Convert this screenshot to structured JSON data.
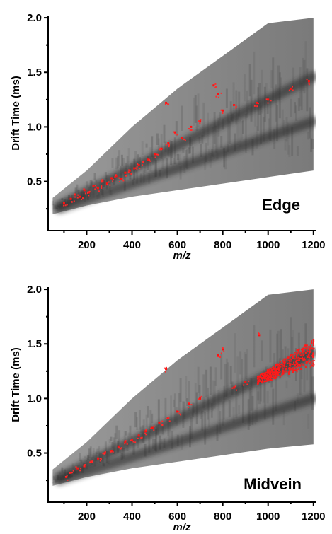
{
  "chart_data": [
    {
      "type": "heatmap",
      "annotation": "Edge",
      "xlabel": "m/z",
      "ylabel": "Drift Time (ms)",
      "xlim": [
        30,
        1210
      ],
      "ylim": [
        0.05,
        2.02
      ],
      "xticks": [
        "200",
        "400",
        "600",
        "800",
        "1000",
        "1200"
      ],
      "yticks": [
        "0.5",
        "1.0",
        "1.5",
        "2.0"
      ],
      "xtick_values": [
        200,
        400,
        600,
        800,
        1000,
        1200
      ],
      "ytick_values": [
        0.5,
        1.0,
        1.5,
        2.0
      ],
      "intensity_envelope": {
        "mz": [
          50,
          200,
          400,
          600,
          800,
          1000,
          1200
        ],
        "lower": [
          0.2,
          0.28,
          0.36,
          0.42,
          0.48,
          0.54,
          0.6
        ],
        "upper": [
          0.35,
          0.6,
          1.0,
          1.35,
          1.65,
          1.95,
          2.0
        ]
      },
      "bright_bands": [
        {
          "mz": [
            80,
            1200
          ],
          "drift": [
            0.28,
            1.46
          ]
        },
        {
          "mz": [
            80,
            1200
          ],
          "drift": [
            0.25,
            1.05
          ]
        }
      ],
      "red_features": [
        {
          "mz": 100,
          "drift": 0.3
        },
        {
          "mz": 130,
          "drift": 0.34
        },
        {
          "mz": 150,
          "drift": 0.38
        },
        {
          "mz": 170,
          "drift": 0.36
        },
        {
          "mz": 190,
          "drift": 0.42
        },
        {
          "mz": 210,
          "drift": 0.4
        },
        {
          "mz": 230,
          "drift": 0.46
        },
        {
          "mz": 250,
          "drift": 0.44
        },
        {
          "mz": 270,
          "drift": 0.5
        },
        {
          "mz": 290,
          "drift": 0.48
        },
        {
          "mz": 310,
          "drift": 0.53
        },
        {
          "mz": 330,
          "drift": 0.55
        },
        {
          "mz": 350,
          "drift": 0.52
        },
        {
          "mz": 370,
          "drift": 0.58
        },
        {
          "mz": 390,
          "drift": 0.6
        },
        {
          "mz": 410,
          "drift": 0.62
        },
        {
          "mz": 430,
          "drift": 0.65
        },
        {
          "mz": 450,
          "drift": 0.68
        },
        {
          "mz": 470,
          "drift": 0.7
        },
        {
          "mz": 500,
          "drift": 0.75
        },
        {
          "mz": 530,
          "drift": 0.8
        },
        {
          "mz": 550,
          "drift": 1.22
        },
        {
          "mz": 560,
          "drift": 0.85
        },
        {
          "mz": 590,
          "drift": 0.95
        },
        {
          "mz": 620,
          "drift": 0.9
        },
        {
          "mz": 660,
          "drift": 1.0
        },
        {
          "mz": 700,
          "drift": 1.05
        },
        {
          "mz": 760,
          "drift": 1.38
        },
        {
          "mz": 780,
          "drift": 1.3
        },
        {
          "mz": 800,
          "drift": 1.15
        },
        {
          "mz": 850,
          "drift": 1.2
        },
        {
          "mz": 950,
          "drift": 1.22
        },
        {
          "mz": 1000,
          "drift": 1.25
        },
        {
          "mz": 1100,
          "drift": 1.35
        },
        {
          "mz": 1180,
          "drift": 1.42
        }
      ]
    },
    {
      "type": "heatmap",
      "annotation": "Midvein",
      "xlabel": "m/z",
      "ylabel": "Drift Time (ms)",
      "xlim": [
        30,
        1210
      ],
      "ylim": [
        0.05,
        2.02
      ],
      "xticks": [
        "200",
        "400",
        "600",
        "800",
        "1000",
        "1200"
      ],
      "yticks": [
        "0.5",
        "1.0",
        "1.5",
        "2.0"
      ],
      "xtick_values": [
        200,
        400,
        600,
        800,
        1000,
        1200
      ],
      "ytick_values": [
        0.5,
        1.0,
        1.5,
        2.0
      ],
      "intensity_envelope": {
        "mz": [
          50,
          200,
          400,
          600,
          800,
          1000,
          1200
        ],
        "lower": [
          0.2,
          0.28,
          0.36,
          0.42,
          0.48,
          0.54,
          0.58
        ],
        "upper": [
          0.35,
          0.6,
          1.0,
          1.35,
          1.65,
          1.95,
          2.0
        ]
      },
      "bright_bands": [
        {
          "mz": [
            80,
            1200
          ],
          "drift": [
            0.28,
            1.42
          ]
        },
        {
          "mz": [
            80,
            1200
          ],
          "drift": [
            0.25,
            1.0
          ]
        }
      ],
      "red_features": [
        {
          "mz": 110,
          "drift": 0.28
        },
        {
          "mz": 130,
          "drift": 0.32
        },
        {
          "mz": 160,
          "drift": 0.36
        },
        {
          "mz": 190,
          "drift": 0.38
        },
        {
          "mz": 220,
          "drift": 0.42
        },
        {
          "mz": 250,
          "drift": 0.45
        },
        {
          "mz": 280,
          "drift": 0.5
        },
        {
          "mz": 310,
          "drift": 0.52
        },
        {
          "mz": 340,
          "drift": 0.56
        },
        {
          "mz": 370,
          "drift": 0.6
        },
        {
          "mz": 400,
          "drift": 0.62
        },
        {
          "mz": 430,
          "drift": 0.66
        },
        {
          "mz": 460,
          "drift": 0.7
        },
        {
          "mz": 490,
          "drift": 0.73
        },
        {
          "mz": 520,
          "drift": 0.78
        },
        {
          "mz": 550,
          "drift": 1.27
        },
        {
          "mz": 560,
          "drift": 0.82
        },
        {
          "mz": 600,
          "drift": 0.88
        },
        {
          "mz": 650,
          "drift": 0.95
        },
        {
          "mz": 700,
          "drift": 1.0
        },
        {
          "mz": 780,
          "drift": 1.4
        },
        {
          "mz": 800,
          "drift": 1.45
        },
        {
          "mz": 850,
          "drift": 1.1
        },
        {
          "mz": 900,
          "drift": 1.15
        },
        {
          "mz": 960,
          "drift": 1.58
        }
      ],
      "red_cluster": {
        "mz": [
          950,
          1200
        ],
        "drift": [
          1.05,
          1.5
        ]
      }
    }
  ]
}
